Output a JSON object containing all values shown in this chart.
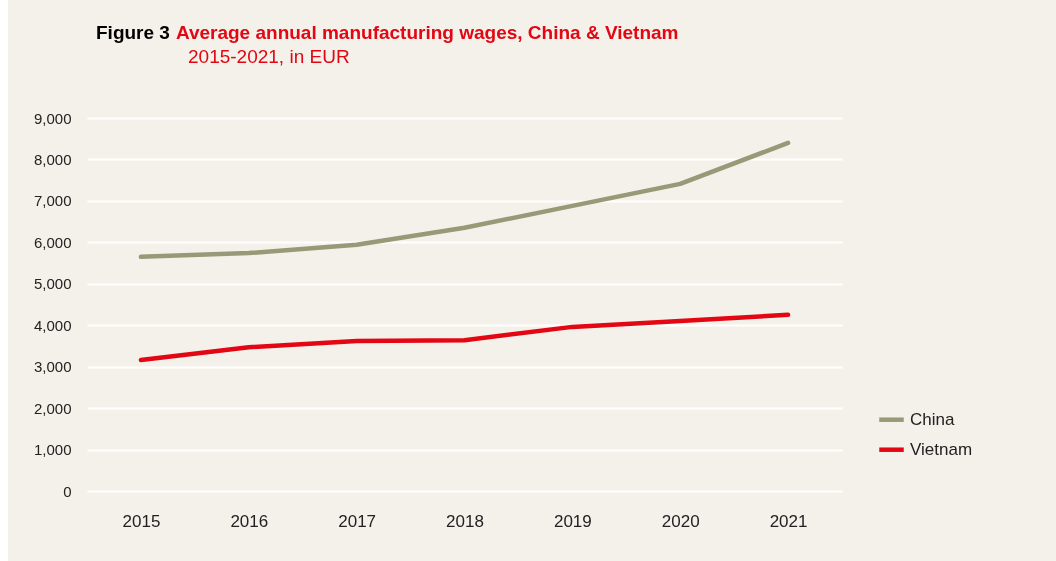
{
  "chart_data": {
    "type": "line",
    "title": "Average annual manufacturing wages, China & Vietnam",
    "subtitle": "2015-2021, in EUR",
    "annotations": [
      "Figure 3"
    ],
    "categories": [
      "2015",
      "2016",
      "2017",
      "2018",
      "2019",
      "2020",
      "2021"
    ],
    "series": [
      {
        "name": "China",
        "color": "#969a77",
        "values": [
          5650,
          5740,
          5940,
          6350,
          6880,
          7410,
          8400
        ]
      },
      {
        "name": "Vietnam",
        "color": "#e30613",
        "values": [
          3160,
          3470,
          3620,
          3640,
          3960,
          4100,
          4250
        ]
      }
    ],
    "ylim": [
      0,
      9000
    ],
    "yticks": [
      0,
      {
        "value": 1000,
        "label": "1,000"
      },
      {
        "value": 2000,
        "label": "2,000"
      },
      {
        "value": 3000,
        "label": "3,000"
      },
      {
        "value": 4000,
        "label": "4,000"
      },
      {
        "value": 5000,
        "label": "5,000"
      },
      {
        "value": 6000,
        "label": "6,000"
      },
      {
        "value": 7000,
        "label": "7,000"
      },
      {
        "value": 8000,
        "label": "8,000"
      },
      {
        "value": 9000,
        "label": "9,000"
      }
    ],
    "grid": "y",
    "legend": "bottom right",
    "marker": "none",
    "line_style": "solid"
  }
}
